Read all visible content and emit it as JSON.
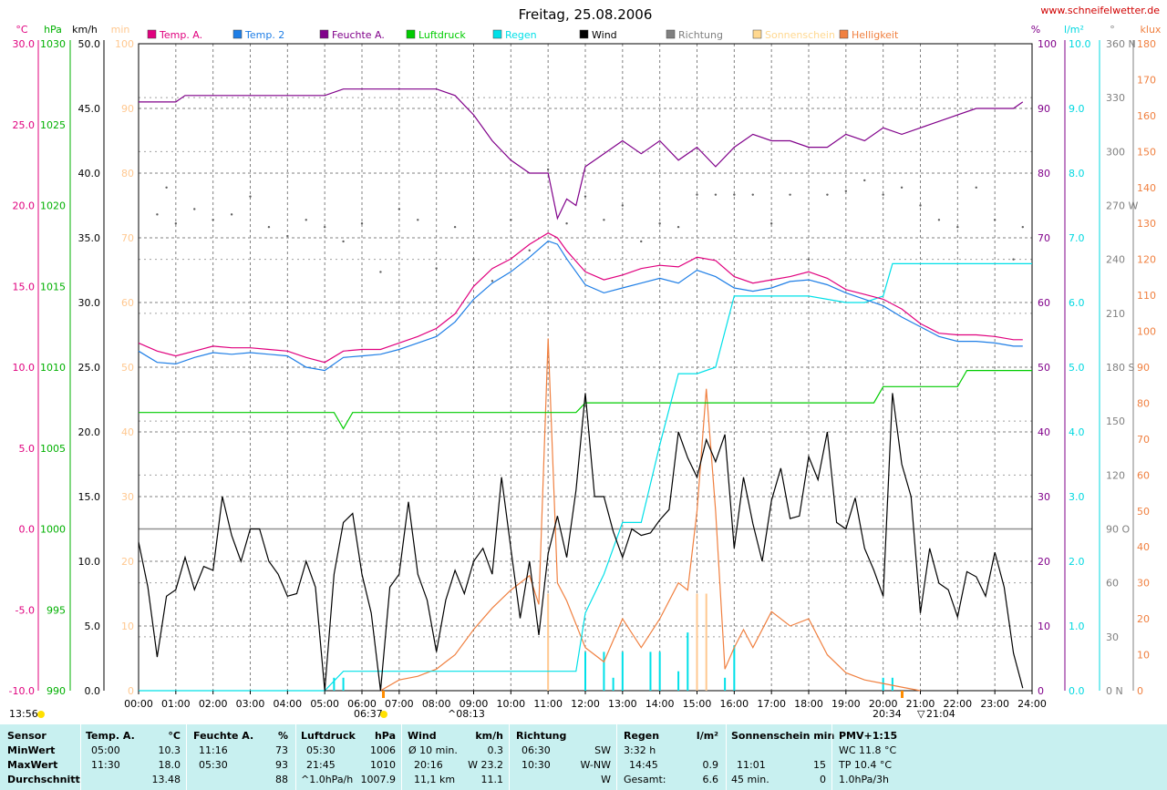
{
  "title": "Freitag, 25.08.2006",
  "site": "www.schneifelwetter.de",
  "legend": [
    {
      "label": "Temp. A.",
      "color": "#e0007e"
    },
    {
      "label": "Temp. 2",
      "color": "#1e7ee6"
    },
    {
      "label": "Feuchte A.",
      "color": "#80008a"
    },
    {
      "label": "Luftdruck",
      "color": "#00cc00"
    },
    {
      "label": "Regen",
      "color": "#00e0e8"
    },
    {
      "label": "Wind",
      "color": "#000000"
    },
    {
      "label": "Richtung",
      "color": "#808080"
    },
    {
      "label": "Sonnenschein",
      "color": "#ffd890"
    },
    {
      "label": "Helligkeit",
      "color": "#f08040"
    }
  ],
  "axes": {
    "temp": {
      "unit": "°C",
      "color": "#e0007e",
      "ticks": [
        "30.0",
        "25.0",
        "20.0",
        "15.0",
        "10.0",
        "5.0",
        "0.0",
        "-5.0",
        "-10.0"
      ]
    },
    "pressure": {
      "unit": "hPa",
      "color": "#00b000",
      "ticks": [
        "1030",
        "1025",
        "1020",
        "1015",
        "1010",
        "1005",
        "1000",
        "995",
        "990"
      ]
    },
    "wind": {
      "unit": "km/h",
      "color": "#000000",
      "ticks": [
        "50.0",
        "45.0",
        "40.0",
        "35.0",
        "30.0",
        "25.0",
        "20.0",
        "15.0",
        "10.0",
        "5.0",
        "0.0"
      ]
    },
    "sun": {
      "unit": "min",
      "color": "#ffc890",
      "ticks": [
        "100",
        "90",
        "80",
        "70",
        "60",
        "50",
        "40",
        "30",
        "20",
        "10",
        "0"
      ]
    },
    "humidity": {
      "unit": "%",
      "color": "#80008a",
      "ticks": [
        "100",
        "90",
        "80",
        "70",
        "60",
        "50",
        "40",
        "30",
        "20",
        "10",
        "0"
      ]
    },
    "rain": {
      "unit": "l/m²",
      "color": "#00d8e0",
      "ticks": [
        "10.0",
        "9.0",
        "8.0",
        "7.0",
        "6.0",
        "5.0",
        "4.0",
        "3.0",
        "2.0",
        "1.0",
        "0.0"
      ]
    },
    "direction": {
      "unit": "°",
      "color": "#808080",
      "ticks": [
        "360 N",
        "330",
        "300",
        "270 W",
        "240",
        "210",
        "180 S",
        "150",
        "120",
        "90 O",
        "60",
        "30",
        "0 N"
      ]
    },
    "lux": {
      "unit": "klux",
      "color": "#f08040",
      "ticks": [
        "180",
        "170",
        "160",
        "150",
        "140",
        "130",
        "120",
        "110",
        "100",
        "90",
        "80",
        "70",
        "60",
        "50",
        "40",
        "30",
        "20",
        "10",
        "0"
      ]
    }
  },
  "x_ticks": [
    "00:00",
    "01:00",
    "02:00",
    "03:00",
    "04:00",
    "05:00",
    "06:00",
    "07:00",
    "08:00",
    "09:00",
    "10:00",
    "11:00",
    "12:00",
    "13:00",
    "14:00",
    "15:00",
    "16:00",
    "17:00",
    "18:00",
    "19:00",
    "20:00",
    "21:00",
    "22:00",
    "23:00",
    "24:00"
  ],
  "markers": {
    "left_time": "13:56",
    "sunrise": "06:37",
    "sunrise2": "08:13",
    "sunset": "20:34",
    "sunset2": "21:04"
  },
  "chart_data": {
    "type": "line",
    "title": "Freitag, 25.08.2006",
    "x_unit": "hours",
    "xlim": [
      0,
      24
    ],
    "series": [
      {
        "name": "Temp. A.",
        "unit": "°C",
        "ylim": [
          -10,
          30
        ],
        "color": "#e0007e",
        "x": [
          0,
          0.5,
          1,
          1.5,
          2,
          2.5,
          3,
          3.5,
          4,
          4.5,
          5,
          5.5,
          6,
          6.5,
          7,
          7.5,
          8,
          8.5,
          9,
          9.5,
          10,
          10.5,
          11,
          11.25,
          11.5,
          12,
          12.5,
          13,
          13.5,
          14,
          14.5,
          15,
          15.5,
          16,
          16.5,
          17,
          17.5,
          18,
          18.5,
          19,
          19.5,
          20,
          20.5,
          21,
          21.5,
          22,
          22.5,
          23,
          23.5,
          23.75
        ],
        "values": [
          11.5,
          11.0,
          10.7,
          11.0,
          11.3,
          11.2,
          11.2,
          11.1,
          11.0,
          10.6,
          10.3,
          11.0,
          11.1,
          11.1,
          11.5,
          11.9,
          12.4,
          13.3,
          15.0,
          16.1,
          16.7,
          17.6,
          18.3,
          18.0,
          17.2,
          15.9,
          15.4,
          15.7,
          16.1,
          16.3,
          16.2,
          16.8,
          16.6,
          15.6,
          15.2,
          15.4,
          15.6,
          15.9,
          15.5,
          14.8,
          14.5,
          14.2,
          13.6,
          12.7,
          12.1,
          12.0,
          12.0,
          11.9,
          11.7,
          11.7
        ]
      },
      {
        "name": "Temp. 2",
        "unit": "°C",
        "ylim": [
          -10,
          30
        ],
        "color": "#1e7ee6",
        "x": [
          0,
          0.5,
          1,
          1.5,
          2,
          2.5,
          3,
          3.5,
          4,
          4.5,
          5,
          5.5,
          6,
          6.5,
          7,
          7.5,
          8,
          8.5,
          9,
          9.5,
          10,
          10.5,
          11,
          11.25,
          11.5,
          12,
          12.5,
          13,
          13.5,
          14,
          14.5,
          15,
          15.5,
          16,
          16.5,
          17,
          17.5,
          18,
          18.5,
          19,
          19.5,
          20,
          20.5,
          21,
          21.5,
          22,
          22.5,
          23,
          23.5,
          23.75
        ],
        "values": [
          11.0,
          10.3,
          10.2,
          10.6,
          10.9,
          10.8,
          10.9,
          10.8,
          10.7,
          10.0,
          9.8,
          10.6,
          10.7,
          10.8,
          11.1,
          11.5,
          11.9,
          12.8,
          14.2,
          15.2,
          15.9,
          16.8,
          17.8,
          17.6,
          16.7,
          15.1,
          14.6,
          14.9,
          15.2,
          15.5,
          15.2,
          16.0,
          15.6,
          14.9,
          14.7,
          14.9,
          15.3,
          15.4,
          15.1,
          14.6,
          14.2,
          13.8,
          13.1,
          12.5,
          11.9,
          11.6,
          11.6,
          11.5,
          11.3,
          11.3
        ]
      },
      {
        "name": "Feuchte A.",
        "unit": "%",
        "ylim": [
          0,
          100
        ],
        "color": "#80008a",
        "x": [
          0,
          1,
          1.25,
          5,
          5.5,
          8,
          8.5,
          9,
          9.5,
          10,
          10.5,
          11,
          11.25,
          11.5,
          11.75,
          12,
          12.5,
          13,
          13.5,
          14,
          14.5,
          15,
          15.5,
          16,
          16.5,
          17,
          17.5,
          18,
          18.5,
          19,
          19.5,
          20,
          20.5,
          21,
          21.5,
          22,
          22.5,
          23,
          23.5,
          23.75
        ],
        "values": [
          91,
          91,
          92,
          92,
          93,
          93,
          92,
          89,
          85,
          82,
          80,
          80,
          73,
          76,
          75,
          81,
          83,
          85,
          83,
          85,
          82,
          84,
          81,
          84,
          86,
          85,
          85,
          84,
          84,
          86,
          85,
          87,
          86,
          87,
          88,
          89,
          90,
          90,
          90,
          91
        ]
      },
      {
        "name": "Luftdruck",
        "unit": "hPa",
        "ylim": [
          990,
          1030
        ],
        "color": "#00cc00",
        "x": [
          0,
          5.25,
          5.5,
          5.75,
          11.75,
          12,
          19.75,
          20,
          22,
          22.25,
          24
        ],
        "values": [
          1007.2,
          1007.2,
          1006.2,
          1007.2,
          1007.2,
          1007.8,
          1007.8,
          1008.8,
          1008.8,
          1009.8,
          1009.8
        ]
      },
      {
        "name": "Regen",
        "unit": "l/m²",
        "ylim": [
          0,
          10
        ],
        "color": "#00e0e8",
        "x": [
          0,
          5,
          5.5,
          11.75,
          12,
          12.5,
          13,
          13.5,
          14,
          14.5,
          15,
          15.5,
          16,
          16.25,
          17,
          18,
          19,
          19.5,
          20,
          20.25,
          20.5,
          21,
          22,
          23,
          24
        ],
        "values": [
          0,
          0,
          0.3,
          0.3,
          1.2,
          1.8,
          2.6,
          2.6,
          3.8,
          4.9,
          4.9,
          5.0,
          6.1,
          6.1,
          6.1,
          6.1,
          6.0,
          6.0,
          6.1,
          6.6,
          6.6,
          6.6,
          6.6,
          6.6,
          6.6
        ]
      },
      {
        "name": "Wind",
        "unit": "km/h",
        "ylim": [
          0,
          50
        ],
        "color": "#000000",
        "x": [
          0,
          0.25,
          0.5,
          0.75,
          1,
          1.25,
          1.5,
          1.75,
          2,
          2.25,
          2.5,
          2.75,
          3,
          3.25,
          3.5,
          3.75,
          4,
          4.25,
          4.5,
          4.75,
          5,
          5.25,
          5.5,
          5.75,
          6,
          6.25,
          6.5,
          6.75,
          7,
          7.25,
          7.5,
          7.75,
          8,
          8.25,
          8.5,
          8.75,
          9,
          9.25,
          9.5,
          9.75,
          10,
          10.25,
          10.5,
          10.75,
          11,
          11.25,
          11.5,
          11.75,
          12,
          12.25,
          12.5,
          12.75,
          13,
          13.25,
          13.5,
          13.75,
          14,
          14.25,
          14.5,
          14.75,
          15,
          15.25,
          15.5,
          15.75,
          16,
          16.25,
          16.5,
          16.75,
          17,
          17.25,
          17.5,
          17.75,
          18,
          18.25,
          18.5,
          18.75,
          19,
          19.25,
          19.5,
          19.75,
          20,
          20.25,
          20.5,
          20.75,
          21,
          21.25,
          21.5,
          21.75,
          22,
          22.25,
          22.5,
          22.75,
          23,
          23.25,
          23.5,
          23.75
        ],
        "values": [
          11.5,
          8,
          2.6,
          7.3,
          7.8,
          10.3,
          7.8,
          9.6,
          9.3,
          15,
          12,
          10,
          12.5,
          12.5,
          10,
          9,
          7.3,
          7.5,
          10,
          8,
          0,
          9,
          13,
          13.7,
          9,
          6,
          0,
          8,
          9,
          14.6,
          9,
          7,
          3,
          7,
          9.3,
          7.5,
          10,
          11,
          9,
          16.5,
          11,
          5.6,
          10,
          4.3,
          10.6,
          13.5,
          10.3,
          15.5,
          23,
          15,
          15,
          12.3,
          10.3,
          12.5,
          12,
          12.2,
          13.2,
          14,
          20,
          18,
          16.5,
          19.4,
          17.7,
          19.8,
          11,
          16.5,
          12.9,
          10,
          14.7,
          17.2,
          13.3,
          13.5,
          18.1,
          16.3,
          20,
          13,
          12.5,
          14.9,
          11,
          9.3,
          7.3,
          23,
          17.5,
          15,
          6,
          11,
          8.3,
          7.8,
          5.7,
          9.2,
          8.8,
          7.3,
          10.7,
          8,
          2.9,
          0.2
        ]
      },
      {
        "name": "Richtung",
        "unit": "°",
        "ylim": [
          0,
          360
        ],
        "color": "#808080",
        "x": [
          0.5,
          0.75,
          1,
          1.5,
          2,
          2.5,
          3,
          3.5,
          4,
          4.5,
          5,
          5.5,
          6,
          6.5,
          7,
          7.5,
          8,
          8.5,
          9,
          9.5,
          10,
          10.5,
          11,
          11.5,
          12,
          12.5,
          13,
          13.5,
          14,
          14.5,
          15,
          15.5,
          16,
          16.5,
          17,
          17.5,
          18,
          18.5,
          19,
          19.5,
          20,
          20.5,
          21,
          21.5,
          22,
          22.5,
          23,
          23.5,
          23.75
        ],
        "values": [
          265,
          280,
          260,
          268,
          262,
          265,
          275,
          258,
          253,
          262,
          258,
          250,
          260,
          233,
          268,
          262,
          235,
          258,
          240,
          228,
          262,
          245,
          290,
          260,
          275,
          262,
          270,
          250,
          260,
          258,
          276,
          276,
          276,
          276,
          260,
          276,
          240,
          276,
          278,
          284,
          276,
          280,
          270,
          262,
          258,
          280,
          262,
          240,
          258
        ]
      },
      {
        "name": "Sonnenschein",
        "unit": "min",
        "ylim": [
          0,
          100
        ],
        "color": "#ffc890",
        "x": [
          11,
          15,
          15.25
        ],
        "values": [
          15,
          15,
          15
        ]
      },
      {
        "name": "Helligkeit",
        "unit": "klux",
        "ylim": [
          0,
          180
        ],
        "color": "#f08040",
        "x": [
          6.5,
          7,
          7.5,
          8,
          8.25,
          8.5,
          9,
          9.5,
          10,
          10.5,
          10.75,
          11,
          11.25,
          11.5,
          12,
          12.5,
          13,
          13.5,
          14,
          14.5,
          14.75,
          15,
          15.25,
          15.5,
          15.75,
          16,
          16.25,
          16.5,
          17,
          17.5,
          18,
          18.5,
          19,
          19.5,
          20,
          20.5,
          21
        ],
        "values": [
          0,
          3,
          4,
          6,
          8,
          10,
          17,
          23,
          28,
          32,
          24,
          98,
          30,
          25,
          12,
          8,
          20,
          12,
          20,
          30,
          28,
          50,
          84,
          50,
          6,
          12,
          17,
          12,
          22,
          18,
          20,
          10,
          5,
          3,
          2,
          1,
          0
        ]
      }
    ]
  },
  "stats": {
    "sensor": {
      "title": "Sensor",
      "rows": [
        "MinWert",
        "MaxWert",
        "Durchschnitt"
      ]
    },
    "temp": {
      "title": "Temp. A.",
      "unit": "°C",
      "rows": [
        [
          "05:00",
          "10.3"
        ],
        [
          "11:30",
          "18.0"
        ],
        [
          "",
          "13.48"
        ]
      ]
    },
    "hum": {
      "title": "Feuchte A.",
      "unit": "%",
      "rows": [
        [
          "11:16",
          "73"
        ],
        [
          "05:30",
          "93"
        ],
        [
          "",
          "88"
        ]
      ]
    },
    "press": {
      "title": "Luftdruck",
      "unit": "hPa",
      "rows": [
        [
          "05:30",
          "1006"
        ],
        [
          "21:45",
          "1010"
        ],
        [
          "^1.0hPa/h",
          "1007.9"
        ]
      ]
    },
    "wind": {
      "title": "Wind",
      "unit": "km/h",
      "rows": [
        [
          "Ø 10 min.",
          "0.3"
        ],
        [
          "20:16",
          "W 23.2"
        ],
        [
          "11,1 km",
          "11.1"
        ]
      ]
    },
    "dir": {
      "title": "Richtung",
      "unit": "",
      "rows": [
        [
          "06:30",
          "SW"
        ],
        [
          "10:30",
          "W-NW"
        ],
        [
          "",
          "W"
        ]
      ]
    },
    "rain": {
      "title": "Regen",
      "unit": "l/m²",
      "rows": [
        [
          "3:32 h",
          ""
        ],
        [
          "14:45",
          "0.9"
        ],
        [
          "Gesamt:",
          "6.6"
        ]
      ]
    },
    "sun": {
      "title": "Sonnenschein min",
      "unit": "",
      "rows": [
        [
          "",
          ""
        ],
        [
          "11:01",
          "15"
        ],
        [
          "45 min.",
          "0"
        ]
      ]
    },
    "pmv": {
      "title": "PMV+1:15",
      "rows": [
        "WC 11.8 °C",
        "TP 10.4 °C",
        "1.0hPa/3h"
      ]
    }
  }
}
